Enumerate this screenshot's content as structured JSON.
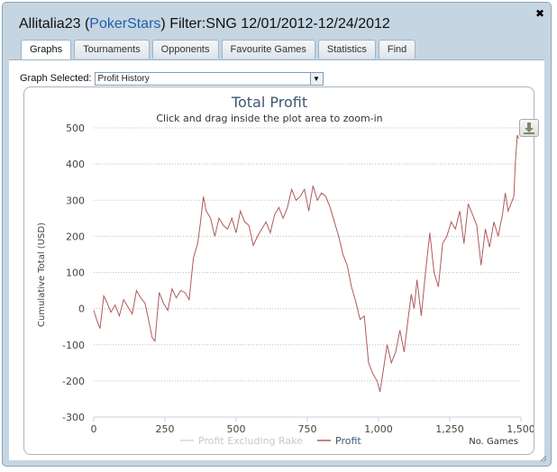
{
  "window": {
    "title_user": "Allitalia23",
    "title_site": "PokerStars",
    "title_filter": "Filter:SNG 12/01/2012-12/24/2012",
    "paren_open": "(",
    "paren_close": ")",
    "close_icon": "close-icon"
  },
  "tabs": [
    {
      "label": "Graphs",
      "active": true
    },
    {
      "label": "Tournaments",
      "active": false
    },
    {
      "label": "Opponents",
      "active": false
    },
    {
      "label": "Favourite Games",
      "active": false
    },
    {
      "label": "Statistics",
      "active": false
    },
    {
      "label": "Find",
      "active": false
    }
  ],
  "graph_selector": {
    "label": "Graph Selected:",
    "value": "Profit History"
  },
  "download_icon": "download-icon",
  "chart_data": {
    "type": "line",
    "title": "Total Profit",
    "subtitle": "Click and drag inside the plot area to zoom-in",
    "xlabel": "No. Games",
    "ylabel": "Cumulative Total (USD)",
    "xlim": [
      0,
      1500
    ],
    "ylim": [
      -300,
      500
    ],
    "x_ticks": [
      "0",
      "250",
      "500",
      "750",
      "1,000",
      "1,250",
      "1,500"
    ],
    "y_ticks": [
      "500",
      "400",
      "300",
      "200",
      "100",
      "0",
      "-100",
      "-200",
      "-300"
    ],
    "legend": [
      "Profit Excluding Rake",
      "Profit"
    ],
    "legend_position": "bottom-center",
    "grid": true,
    "colors": {
      "profit": "#b05a5a",
      "profit_excluding_rake": "#d8d8d8"
    },
    "series": [
      {
        "name": "Profit",
        "x": [
          0,
          10,
          22,
          35,
          45,
          60,
          75,
          90,
          105,
          120,
          135,
          150,
          165,
          180,
          195,
          205,
          215,
          230,
          245,
          260,
          275,
          290,
          305,
          320,
          335,
          350,
          365,
          375,
          385,
          395,
          410,
          425,
          440,
          455,
          470,
          485,
          500,
          515,
          530,
          545,
          560,
          575,
          590,
          605,
          620,
          635,
          650,
          665,
          680,
          695,
          710,
          725,
          740,
          755,
          770,
          785,
          800,
          815,
          830,
          845,
          860,
          875,
          890,
          905,
          920,
          935,
          950,
          965,
          980,
          995,
          1005,
          1015,
          1030,
          1045,
          1060,
          1075,
          1090,
          1105,
          1115,
          1125,
          1135,
          1150,
          1165,
          1180,
          1195,
          1210,
          1225,
          1240,
          1255,
          1270,
          1285,
          1300,
          1315,
          1330,
          1345,
          1360,
          1375,
          1390,
          1405,
          1420,
          1435,
          1445,
          1455,
          1465,
          1475,
          1480,
          1487,
          1492
        ],
        "values": [
          -5,
          -30,
          -55,
          35,
          20,
          -10,
          10,
          -20,
          25,
          5,
          -15,
          50,
          30,
          15,
          -40,
          -80,
          -90,
          45,
          15,
          -5,
          55,
          30,
          50,
          45,
          25,
          140,
          180,
          240,
          310,
          270,
          250,
          200,
          250,
          230,
          220,
          250,
          210,
          270,
          240,
          230,
          175,
          200,
          220,
          240,
          210,
          260,
          280,
          250,
          280,
          330,
          300,
          310,
          330,
          270,
          340,
          300,
          320,
          310,
          280,
          240,
          200,
          150,
          120,
          60,
          20,
          -30,
          -20,
          -150,
          -180,
          -200,
          -230,
          -180,
          -100,
          -150,
          -120,
          -60,
          -120,
          -20,
          40,
          0,
          80,
          -20,
          100,
          210,
          100,
          60,
          180,
          200,
          240,
          220,
          270,
          180,
          290,
          260,
          230,
          120,
          220,
          170,
          240,
          200,
          260,
          320,
          270,
          290,
          310,
          400,
          480,
          470
        ]
      }
    ]
  }
}
